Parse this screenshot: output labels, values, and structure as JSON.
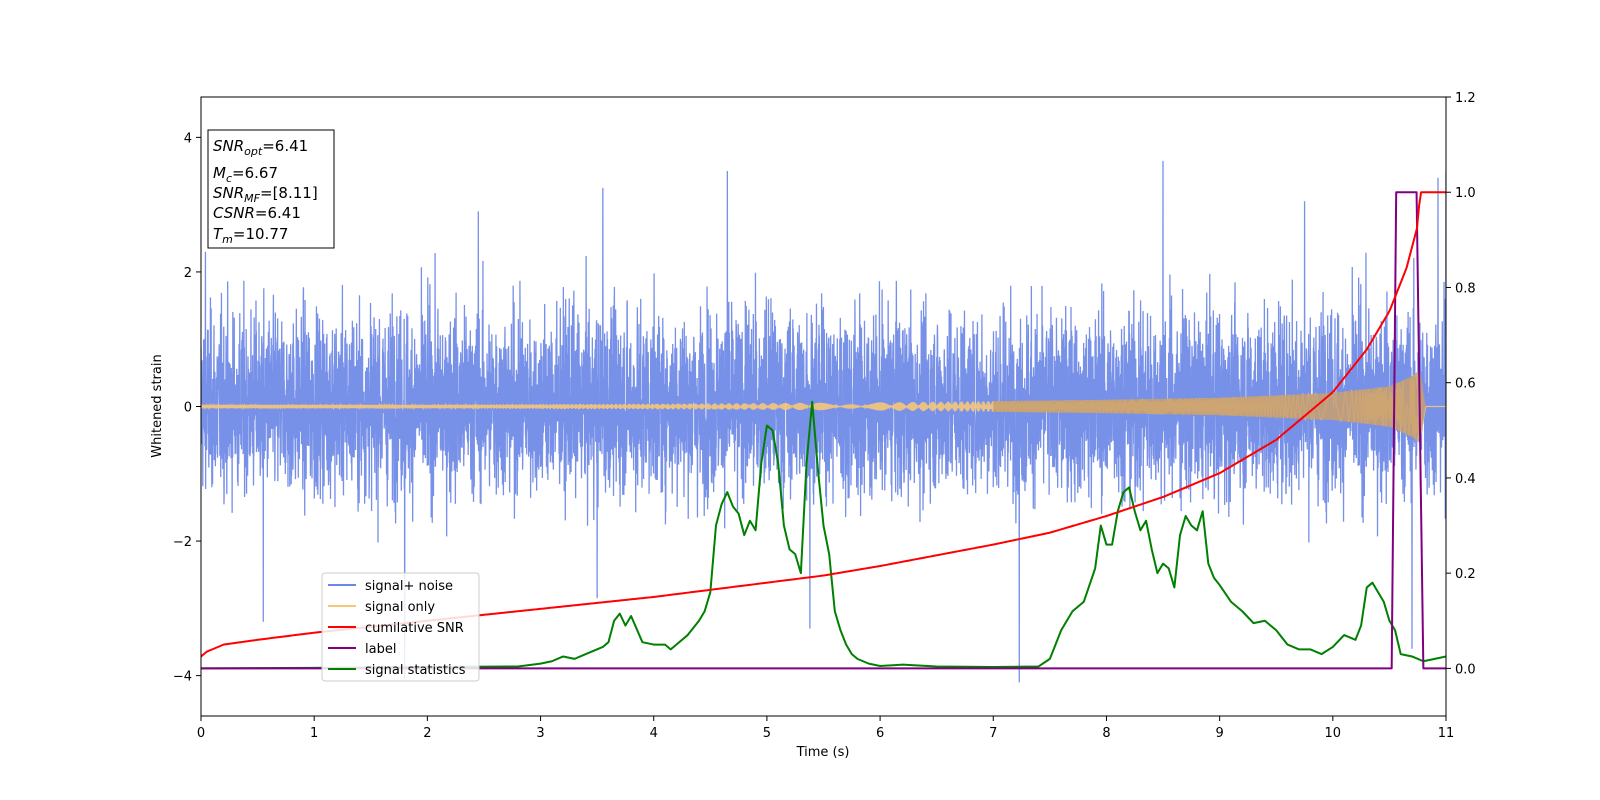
{
  "chart_data": {
    "type": "line",
    "xlabel": "Time (s)",
    "ylabel": "Whitened strain",
    "xlim": [
      0,
      11
    ],
    "ylim": [
      -4.6,
      4.6
    ],
    "ylim_right": [
      -0.1,
      1.2
    ],
    "x_ticks": [
      "0",
      "1",
      "2",
      "3",
      "4",
      "5",
      "6",
      "7",
      "8",
      "9",
      "10",
      "11"
    ],
    "y_ticks": [
      "−4",
      "−2",
      "0",
      "2",
      "4"
    ],
    "y_ticks_right": [
      "0.0",
      "0.2",
      "0.4",
      "0.6",
      "0.8",
      "1.0",
      "1.2"
    ],
    "grid": false,
    "legend_position": "lower-left",
    "colors": {
      "signal_noise": "#6b87e6",
      "signal_only": "#f5c77a",
      "cumulative_snr": "#ff0000",
      "label": "#800080",
      "signal_statistics": "#008000"
    },
    "info_box": {
      "snr_opt": {
        "symbol": "SNR",
        "sub": "opt",
        "value": "=6.41"
      },
      "mc": {
        "symbol": "M",
        "sub": "c",
        "value": "=6.67"
      },
      "snr_mf": {
        "symbol": "SNR",
        "sub": "MF",
        "value": "=[8.11]"
      },
      "csnr": {
        "symbol": "CSNR",
        "value": "=6.41"
      },
      "tm": {
        "symbol": "T",
        "sub": "m",
        "value": "=10.77"
      }
    },
    "series": [
      {
        "name": "signal+ noise",
        "axis": "left",
        "style": "noise",
        "envelope_high": [
          [
            0,
            2.3
          ],
          [
            1,
            2.4
          ],
          [
            2,
            2.5
          ],
          [
            3,
            2.4
          ],
          [
            4,
            2.4
          ],
          [
            5,
            2.5
          ],
          [
            6,
            2.4
          ],
          [
            7,
            2.4
          ],
          [
            8,
            2.5
          ],
          [
            9,
            2.5
          ],
          [
            10,
            2.5
          ],
          [
            11,
            2.5
          ]
        ],
        "envelope_low": [
          [
            0,
            -2.1
          ],
          [
            1,
            -2.2
          ],
          [
            2,
            -2.2
          ],
          [
            3,
            -2.2
          ],
          [
            4,
            -2.2
          ],
          [
            5,
            -2.2
          ],
          [
            6,
            -2.2
          ],
          [
            7,
            -2.2
          ],
          [
            8,
            -2.2
          ],
          [
            9,
            -2.2
          ],
          [
            10,
            -2.2
          ],
          [
            11,
            -2.2
          ]
        ],
        "peaks": [
          [
            0.04,
            2.3
          ],
          [
            0.55,
            -3.2
          ],
          [
            1.8,
            -4.05
          ],
          [
            2.45,
            2.9
          ],
          [
            3.55,
            3.25
          ],
          [
            3.5,
            -2.85
          ],
          [
            4.65,
            3.5
          ],
          [
            5.38,
            -3.3
          ],
          [
            7.23,
            -4.1
          ],
          [
            8.5,
            3.65
          ],
          [
            9.75,
            3.05
          ],
          [
            10.7,
            -3.6
          ],
          [
            10.93,
            3.4
          ],
          [
            11.0,
            3.5
          ]
        ]
      },
      {
        "name": "signal only",
        "axis": "left",
        "style": "chirp",
        "amplitude": [
          [
            0,
            0.03
          ],
          [
            2,
            0.03
          ],
          [
            4,
            0.04
          ],
          [
            6,
            0.06
          ],
          [
            8,
            0.1
          ],
          [
            9,
            0.13
          ],
          [
            10,
            0.2
          ],
          [
            10.5,
            0.3
          ],
          [
            10.7,
            0.45
          ],
          [
            10.77,
            0.55
          ],
          [
            10.82,
            0.0
          ],
          [
            11,
            0.0
          ]
        ]
      },
      {
        "name": "cumilative SNR",
        "axis": "right",
        "x": [
          0,
          0.05,
          0.2,
          0.5,
          1,
          2,
          3,
          4,
          5,
          5.5,
          6,
          7,
          7.5,
          8,
          8.5,
          9,
          9.5,
          10,
          10.3,
          10.5,
          10.65,
          10.75,
          10.77,
          11
        ],
        "y": [
          0.025,
          0.035,
          0.05,
          0.06,
          0.075,
          0.1,
          0.125,
          0.15,
          0.18,
          0.195,
          0.215,
          0.26,
          0.285,
          0.32,
          0.36,
          0.41,
          0.48,
          0.58,
          0.67,
          0.75,
          0.84,
          0.93,
          1.0,
          1.0
        ]
      },
      {
        "name": "label",
        "axis": "right",
        "x": [
          0,
          10.52,
          10.56,
          10.74,
          10.8,
          11
        ],
        "y": [
          0.0,
          0.0,
          1.0,
          1.0,
          0.0,
          0.0
        ]
      },
      {
        "name": "signal statistics",
        "axis": "right",
        "x": [
          0,
          1.0,
          2.0,
          2.8,
          3.0,
          3.1,
          3.2,
          3.3,
          3.4,
          3.5,
          3.55,
          3.6,
          3.65,
          3.7,
          3.75,
          3.8,
          3.9,
          4.0,
          4.1,
          4.15,
          4.2,
          4.3,
          4.4,
          4.45,
          4.5,
          4.55,
          4.6,
          4.65,
          4.7,
          4.75,
          4.8,
          4.85,
          4.9,
          4.95,
          5.0,
          5.05,
          5.1,
          5.15,
          5.2,
          5.25,
          5.3,
          5.35,
          5.4,
          5.45,
          5.5,
          5.55,
          5.6,
          5.65,
          5.7,
          5.75,
          5.8,
          5.9,
          6.0,
          6.2,
          6.5,
          7.0,
          7.4,
          7.5,
          7.55,
          7.6,
          7.7,
          7.8,
          7.9,
          7.95,
          8.0,
          8.05,
          8.1,
          8.15,
          8.2,
          8.25,
          8.3,
          8.35,
          8.4,
          8.45,
          8.5,
          8.55,
          8.6,
          8.65,
          8.7,
          8.75,
          8.8,
          8.85,
          8.9,
          8.95,
          9.0,
          9.1,
          9.2,
          9.3,
          9.4,
          9.5,
          9.6,
          9.7,
          9.8,
          9.9,
          10.0,
          10.1,
          10.2,
          10.25,
          10.3,
          10.35,
          10.4,
          10.45,
          10.5,
          10.55,
          10.6,
          10.7,
          10.8,
          10.9,
          11.0
        ],
        "y": [
          0.0,
          0.001,
          0.003,
          0.004,
          0.01,
          0.015,
          0.025,
          0.02,
          0.03,
          0.04,
          0.045,
          0.055,
          0.1,
          0.115,
          0.09,
          0.11,
          0.055,
          0.05,
          0.05,
          0.04,
          0.05,
          0.07,
          0.1,
          0.12,
          0.16,
          0.3,
          0.345,
          0.37,
          0.34,
          0.325,
          0.28,
          0.31,
          0.29,
          0.43,
          0.51,
          0.5,
          0.43,
          0.3,
          0.25,
          0.24,
          0.2,
          0.43,
          0.56,
          0.42,
          0.3,
          0.24,
          0.12,
          0.08,
          0.05,
          0.03,
          0.02,
          0.01,
          0.005,
          0.008,
          0.004,
          0.003,
          0.004,
          0.02,
          0.05,
          0.08,
          0.12,
          0.14,
          0.21,
          0.3,
          0.26,
          0.26,
          0.33,
          0.37,
          0.38,
          0.33,
          0.29,
          0.31,
          0.25,
          0.2,
          0.22,
          0.21,
          0.17,
          0.28,
          0.32,
          0.3,
          0.29,
          0.33,
          0.22,
          0.19,
          0.175,
          0.14,
          0.12,
          0.095,
          0.1,
          0.08,
          0.05,
          0.04,
          0.04,
          0.03,
          0.045,
          0.07,
          0.06,
          0.09,
          0.17,
          0.18,
          0.16,
          0.14,
          0.1,
          0.08,
          0.03,
          0.025,
          0.015,
          0.02,
          0.025
        ]
      }
    ]
  }
}
